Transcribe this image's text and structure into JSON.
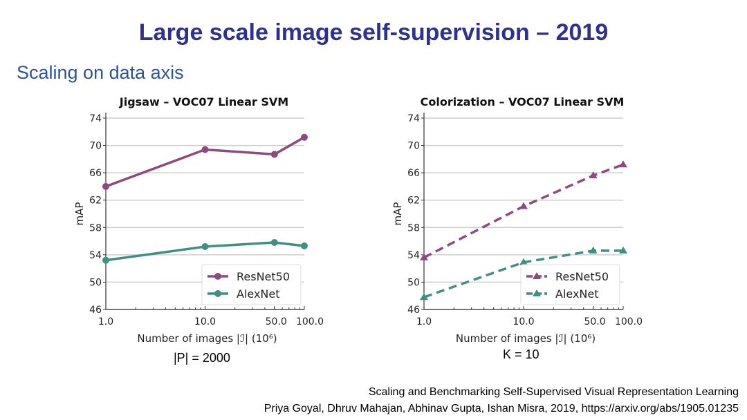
{
  "slide": {
    "title": "Large scale image self-supervision – 2019",
    "subtitle": "Scaling on data axis",
    "reference_line1": "Scaling and Benchmarking Self-Supervised Visual Representation Learning",
    "reference_line2": "Priya Goyal, Dhruv Mahajan, Abhinav Gupta, Ishan Misra, 2019, https://arxiv.org/abs/1905.01235"
  },
  "colors": {
    "title": "#2e3192",
    "subtitle": "#2f5496",
    "resnet50": "#8e4a7e",
    "alexnet": "#3f8f82"
  },
  "chart_data": [
    {
      "type": "line",
      "title": "Jigsaw  – VOC07 Linear SVM",
      "caption": "|P| = 2000",
      "xlabel": "Number of images |ℐ| (10⁶)",
      "ylabel": "mAP",
      "xscale": "log",
      "x": [
        1,
        10,
        50,
        100
      ],
      "xticks": [
        "1.0",
        "10.0",
        "50.0",
        "100.0"
      ],
      "yticks": [
        "46",
        "50",
        "54",
        "58",
        "62",
        "66",
        "70",
        "74"
      ],
      "ylim": [
        46,
        74
      ],
      "grid": "horizontal",
      "legend": "bottom-right",
      "line_style": "solid",
      "marker": "circle",
      "series": [
        {
          "name": "ResNet50",
          "values": [
            64.0,
            69.4,
            68.7,
            71.2
          ]
        },
        {
          "name": "AlexNet",
          "values": [
            53.2,
            55.2,
            55.8,
            55.3
          ]
        }
      ]
    },
    {
      "type": "line",
      "title": "Colorization  – VOC07 Linear SVM",
      "caption": "K = 10",
      "xlabel": "Number of images |ℐ| (10⁶)",
      "ylabel": "mAP",
      "xscale": "log",
      "x": [
        1,
        10,
        50,
        100
      ],
      "xticks": [
        "1.0",
        "10.0",
        "50.0",
        "100.0"
      ],
      "yticks": [
        "46",
        "50",
        "54",
        "58",
        "62",
        "66",
        "70",
        "74"
      ],
      "ylim": [
        46,
        74
      ],
      "grid": "horizontal",
      "legend": "bottom-right",
      "line_style": "dashed",
      "marker": "triangle",
      "series": [
        {
          "name": "ResNet50",
          "values": [
            53.6,
            61.1,
            65.6,
            67.2
          ]
        },
        {
          "name": "AlexNet",
          "values": [
            47.8,
            52.9,
            54.6,
            54.6
          ]
        }
      ]
    }
  ]
}
